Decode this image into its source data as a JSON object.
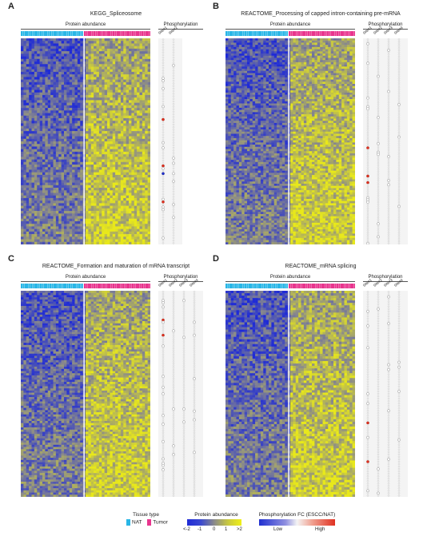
{
  "panels": [
    {
      "label": "A",
      "title": "KEGG_Spliceosome",
      "abundance_header": "Protein abundance",
      "phospho_header": "Phosphorylation",
      "sites": [
        "Site#1",
        "Site#2"
      ],
      "rows": 80,
      "seed": 11
    },
    {
      "label": "B",
      "title": "REACTOME_Processing of capped intron-containing pre-mRNA",
      "abundance_header": "Protein abundance",
      "phospho_header": "Phosphorylation",
      "sites": [
        "Site#1",
        "Site#2",
        "Site#3",
        "Site#4"
      ],
      "rows": 95,
      "seed": 23
    },
    {
      "label": "C",
      "title": "REACTOME_Formation and maturation of mRNA transcript",
      "abundance_header": "Protein abundance",
      "phospho_header": "Phosphorylation",
      "sites": [
        "Site#1",
        "Site#2",
        "Site#3",
        "Site#4"
      ],
      "rows": 95,
      "seed": 37
    },
    {
      "label": "D",
      "title": "REACTOME_mRNA splicing",
      "abundance_header": "Protein abundance",
      "phospho_header": "Phosphorylation",
      "sites": [
        "Site#1",
        "Site#2",
        "Site#3",
        "Site#4"
      ],
      "rows": 85,
      "seed": 51
    }
  ],
  "legend": {
    "tissue_title": "Tissue type",
    "nat_label": "NAT",
    "tumor_label": "Tumor",
    "abundance_title": "Protein abundance",
    "abundance_ticks": [
      "<-2",
      "-1",
      "0",
      "1",
      ">2"
    ],
    "phospho_title": "Phosphorylation FC (ESCC/NAT)",
    "phospho_low": "Low",
    "phospho_high": "High"
  },
  "colors": {
    "nat": "#29b6e6",
    "tumor": "#e8358e",
    "low": "#1f2bd6",
    "mid": "#8a8a8a",
    "high": "#e8e81a",
    "phos_low": "#2030d0",
    "phos_high": "#e03020"
  }
}
